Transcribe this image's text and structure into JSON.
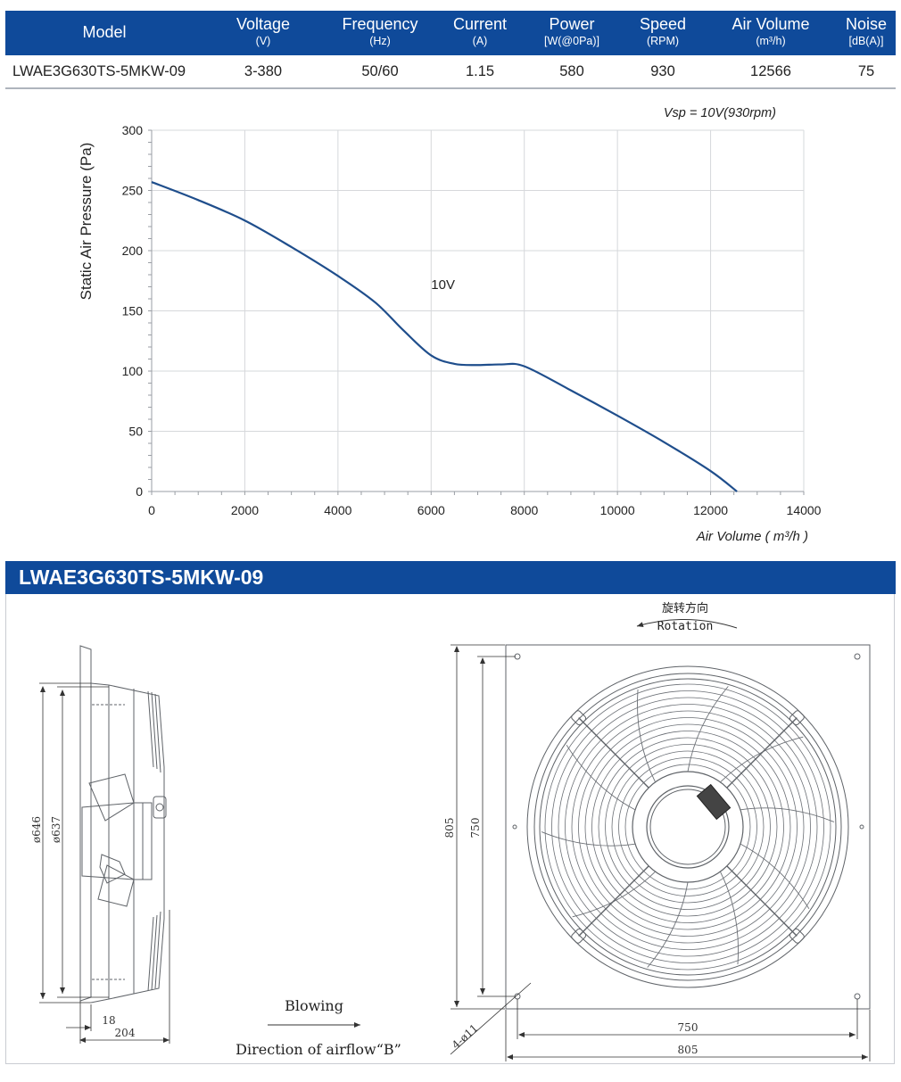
{
  "spec_table": {
    "headers": [
      {
        "name": "Model",
        "unit": ""
      },
      {
        "name": "Voltage",
        "unit": "(V)"
      },
      {
        "name": "Frequency",
        "unit": "(Hz)"
      },
      {
        "name": "Current",
        "unit": "(A)"
      },
      {
        "name": "Power",
        "unit": "[W(@0Pa)]"
      },
      {
        "name": "Speed",
        "unit": "(RPM)"
      },
      {
        "name": "Air Volume",
        "unit": "(m³/h)"
      },
      {
        "name": "Noise",
        "unit": "[dB(A)]"
      }
    ],
    "row": [
      "LWAE3G630TS-5MKW-09",
      "3-380",
      "50/60",
      "1.15",
      "580",
      "930",
      "12566",
      "75"
    ]
  },
  "chart_data": {
    "type": "line",
    "annotation": "Vsp = 10V(930rpm)",
    "xlabel": "Air Volume ( m³/h )",
    "ylabel": "Static Air Pressure  (Pa)",
    "xlim": [
      0,
      14000
    ],
    "ylim": [
      0,
      300
    ],
    "xticks": [
      0,
      2000,
      4000,
      6000,
      8000,
      10000,
      12000,
      14000
    ],
    "yticks": [
      0,
      50,
      100,
      150,
      200,
      250,
      300
    ],
    "grid": true,
    "series": [
      {
        "name": "10V",
        "color": "#1f4e8c",
        "x": [
          0,
          1000,
          2000,
          3000,
          4000,
          4800,
          5400,
          6000,
          6500,
          7000,
          7500,
          8000,
          9000,
          10000,
          11000,
          12000,
          12566
        ],
        "y": [
          257,
          242,
          225,
          203,
          179,
          157,
          134,
          113,
          106,
          105,
          105.5,
          104,
          84,
          63,
          41,
          17,
          0
        ]
      }
    ]
  },
  "section": {
    "title": "LWAE3G630TS-5MKW-09"
  },
  "drawing": {
    "side_view": {
      "dims": [
        "ø646",
        "ø637",
        "18",
        "204"
      ]
    },
    "airflow": {
      "label": "Blowing",
      "caption": "Direction of airflow“B”"
    },
    "rotation": {
      "label_cn": "旋转方向",
      "label_en": "Rotation"
    },
    "front_view": {
      "dims": [
        "805",
        "750",
        "750",
        "805",
        "4-ø11"
      ]
    },
    "colors": {
      "line": "#5f6368",
      "dim": "#333333",
      "accent": "#0f4a9a"
    }
  }
}
